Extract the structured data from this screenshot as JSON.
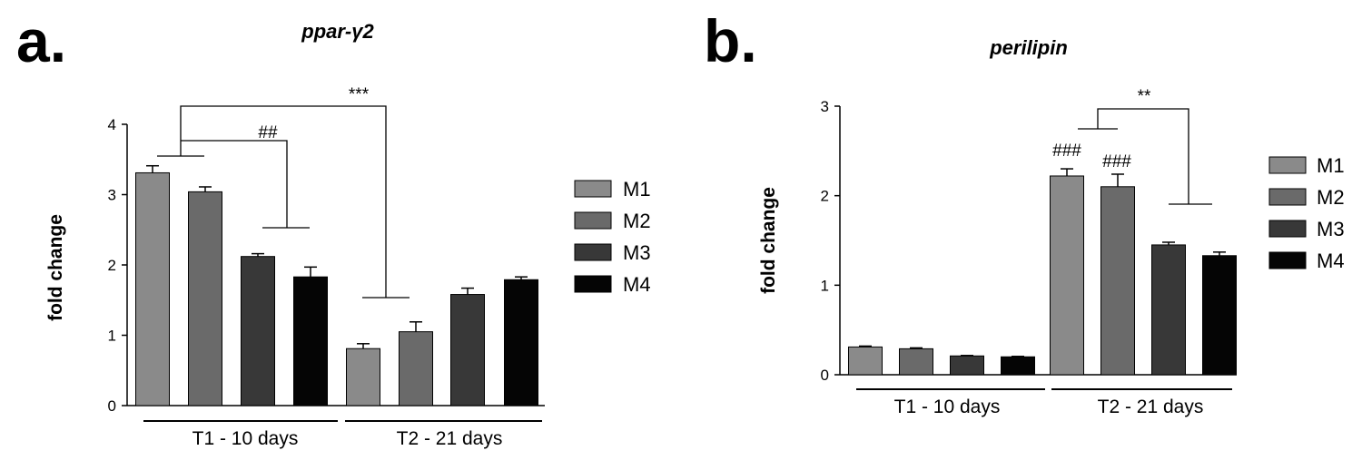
{
  "colors": {
    "M1": "#8a8a8a",
    "M2": "#6a6a6a",
    "M3": "#383838",
    "M4": "#050505"
  },
  "chart_data": [
    {
      "type": "bar",
      "panel": "a.",
      "title": "ppar-γ2",
      "ylabel": "fold change",
      "ylim": [
        0,
        4
      ],
      "yticks": [
        "0",
        "1",
        "2",
        "3",
        "4"
      ],
      "groups": [
        "T1 - 10 days",
        "T2 - 21 days"
      ],
      "series": [
        {
          "name": "M1",
          "values": [
            3.31,
            0.81
          ],
          "errors": [
            0.1,
            0.07
          ]
        },
        {
          "name": "M2",
          "values": [
            3.04,
            1.05
          ],
          "errors": [
            0.07,
            0.14
          ]
        },
        {
          "name": "M3",
          "values": [
            2.12,
            1.58
          ],
          "errors": [
            0.04,
            0.09
          ]
        },
        {
          "name": "M4",
          "values": [
            1.83,
            1.79
          ],
          "errors": [
            0.14,
            0.04
          ]
        }
      ],
      "annotations": [
        "##",
        "***"
      ],
      "legend": "right"
    },
    {
      "type": "bar",
      "panel": "b.",
      "title": "perilipin",
      "ylabel": "fold change",
      "ylim": [
        0,
        3
      ],
      "yticks": [
        "0",
        "1",
        "2",
        "3"
      ],
      "groups": [
        "T1 - 10 days",
        "T2 - 21 days"
      ],
      "series": [
        {
          "name": "M1",
          "values": [
            0.31,
            2.22
          ],
          "errors": [
            0.01,
            0.08
          ]
        },
        {
          "name": "M2",
          "values": [
            0.29,
            2.1
          ],
          "errors": [
            0.01,
            0.14
          ]
        },
        {
          "name": "M3",
          "values": [
            0.21,
            1.45
          ],
          "errors": [
            0.005,
            0.03
          ]
        },
        {
          "name": "M4",
          "values": [
            0.2,
            1.33
          ],
          "errors": [
            0.005,
            0.04
          ]
        }
      ],
      "annotations": [
        "###",
        "###",
        "**"
      ],
      "legend": "right"
    }
  ]
}
